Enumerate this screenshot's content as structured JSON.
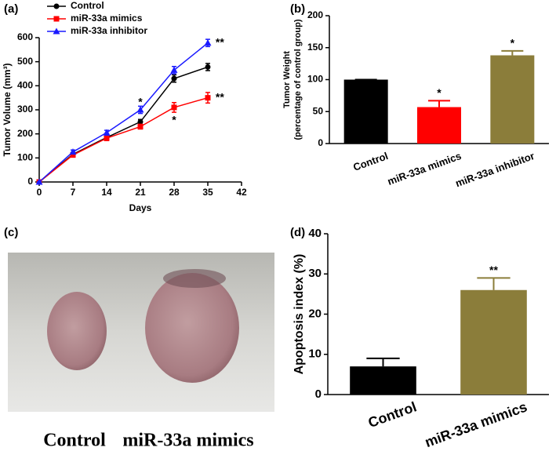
{
  "chart_data": [
    {
      "type": "line",
      "panel": "(a)",
      "xlabel": "Days",
      "ylabel": "Tumor Volume (mm³)",
      "x": [
        0,
        7,
        14,
        21,
        28,
        35
      ],
      "series": [
        {
          "name": "Control",
          "color": "#000000",
          "marker": "circle",
          "values": [
            0,
            115,
            185,
            250,
            430,
            478
          ],
          "errors": [
            0,
            8,
            10,
            10,
            15,
            15
          ]
        },
        {
          "name": "miR-33a mimics",
          "color": "#ff0000",
          "marker": "square",
          "values": [
            0,
            112,
            182,
            230,
            310,
            350
          ],
          "errors": [
            0,
            8,
            10,
            10,
            20,
            22
          ]
        },
        {
          "name": "miR-33a inhibitor",
          "color": "#1a1aff",
          "marker": "triangle",
          "values": [
            0,
            125,
            205,
            300,
            465,
            578
          ],
          "errors": [
            0,
            8,
            10,
            15,
            15,
            15
          ]
        }
      ],
      "xlim": [
        0,
        42
      ],
      "xticks": [
        0,
        7,
        14,
        21,
        28,
        35,
        42
      ],
      "ylim": [
        0,
        600
      ],
      "yticks": [
        0,
        100,
        200,
        300,
        400,
        500,
        600
      ],
      "annotations": [
        {
          "text": "*",
          "x": 21,
          "y": 330
        },
        {
          "text": "*",
          "x": 28,
          "y": 255
        },
        {
          "text": "**",
          "x": 37.5,
          "y": 578
        },
        {
          "text": "**",
          "x": 37.5,
          "y": 350
        }
      ]
    },
    {
      "type": "bar",
      "panel": "(b)",
      "ylabel": [
        "Tumor Weight",
        "(percentage of control group)"
      ],
      "categories": [
        "Control",
        "miR-33a mimics",
        "miR-33a inhibitor"
      ],
      "values": [
        100,
        57,
        138
      ],
      "errors": [
        0,
        10,
        7
      ],
      "colors": [
        "#000000",
        "#ff0000",
        "#8b7d3a"
      ],
      "ylim": [
        0,
        200
      ],
      "yticks": [
        0,
        50,
        100,
        150,
        200
      ],
      "annotations": [
        {
          "index": 1,
          "text": "*"
        },
        {
          "index": 2,
          "text": "*"
        }
      ]
    },
    {
      "type": "bar",
      "panel": "(d)",
      "ylabel": "Apoptosis index (%)",
      "categories": [
        "Control",
        "miR-33a mimics"
      ],
      "values": [
        7,
        26
      ],
      "errors": [
        2,
        3
      ],
      "colors": [
        "#000000",
        "#8b7d3a"
      ],
      "ylim": [
        0,
        40
      ],
      "yticks": [
        0,
        10,
        20,
        30,
        40
      ],
      "annotations": [
        {
          "index": 1,
          "text": "**"
        }
      ]
    }
  ],
  "photo": {
    "panel": "(c)",
    "labels": [
      "Control",
      "miR-33a mimics"
    ]
  }
}
